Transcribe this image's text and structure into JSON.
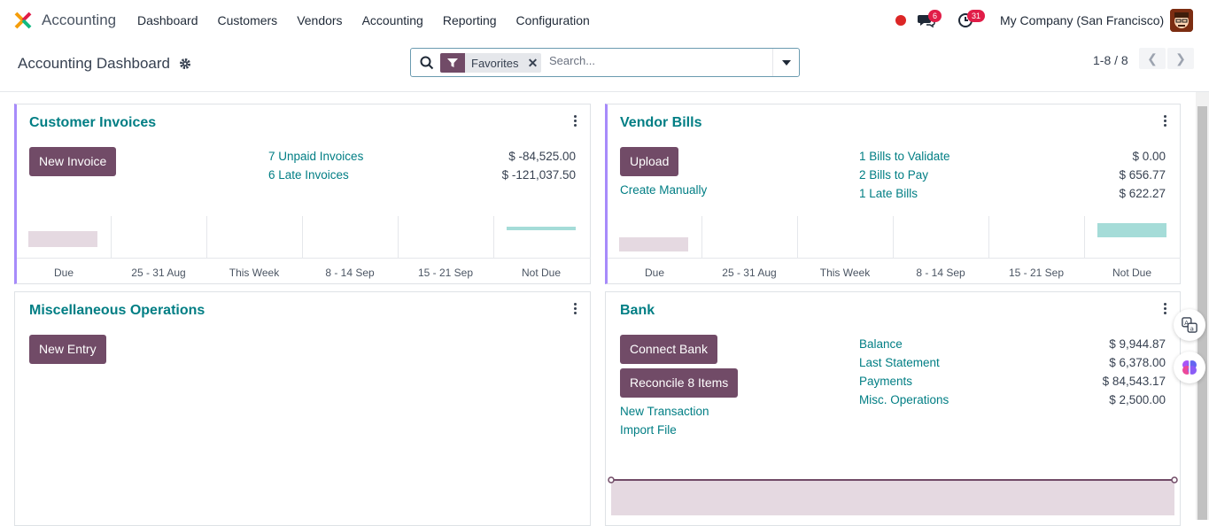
{
  "navbar": {
    "app_title": "Accounting",
    "menu": [
      "Dashboard",
      "Customers",
      "Vendors",
      "Accounting",
      "Reporting",
      "Configuration"
    ],
    "chat_count": "6",
    "activity_count": "31",
    "company": "My Company (San Francisco)",
    "icons": {
      "app": "accounting-app-icon",
      "recording": "red-dot-icon",
      "chat": "chat-icon",
      "activity": "clock-icon"
    }
  },
  "control": {
    "title": "Accounting Dashboard",
    "facet_label": "Favorites",
    "search_placeholder": "Search...",
    "pager": "1-8 / 8"
  },
  "cards": {
    "customer_invoices": {
      "title": "Customer Invoices",
      "button": "New Invoice",
      "rows": [
        {
          "label": "7 Unpaid Invoices",
          "amount": "$ -84,525.00"
        },
        {
          "label": "6 Late Invoices",
          "amount": "$ -121,037.50"
        }
      ],
      "chart_labels": [
        "Due",
        "25 - 31 Aug",
        "This Week",
        "8 - 14 Sep",
        "15 - 21 Sep",
        "Not Due"
      ]
    },
    "vendor_bills": {
      "title": "Vendor Bills",
      "button": "Upload",
      "secondary_link": "Create Manually",
      "rows": [
        {
          "label": "1 Bills to Validate",
          "amount": "$ 0.00"
        },
        {
          "label": "2 Bills to Pay",
          "amount": "$ 656.77"
        },
        {
          "label": "1 Late Bills",
          "amount": "$ 622.27"
        }
      ],
      "chart_labels": [
        "Due",
        "25 - 31 Aug",
        "This Week",
        "8 - 14 Sep",
        "15 - 21 Sep",
        "Not Due"
      ]
    },
    "misc": {
      "title": "Miscellaneous Operations",
      "button": "New Entry"
    },
    "bank": {
      "title": "Bank",
      "buttons": [
        "Connect Bank",
        "Reconcile 8 Items"
      ],
      "links": [
        "New Transaction",
        "Import File"
      ],
      "rows": [
        {
          "label": "Balance",
          "amount": "$ 9,944.87"
        },
        {
          "label": "Last Statement",
          "amount": "$ 6,378.00"
        },
        {
          "label": "Payments",
          "amount": "$ 84,543.17"
        },
        {
          "label": "Misc. Operations",
          "amount": "$ 2,500.00"
        }
      ]
    }
  },
  "colors": {
    "primary": "#714b67",
    "link": "#017e84",
    "accent": "#a78bfa"
  }
}
